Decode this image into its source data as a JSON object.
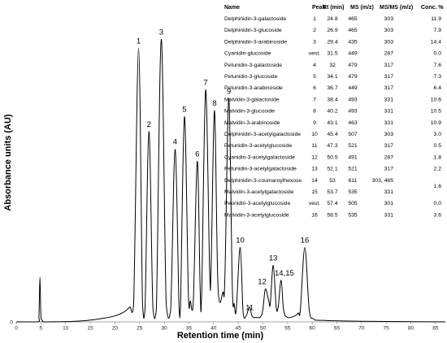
{
  "chart_data": {
    "type": "line",
    "xlabel": "Retention time (min)",
    "ylabel": "Absorbance units (AU)",
    "xlim": [
      0,
      87
    ],
    "ylim": [
      0,
      1
    ],
    "x_ticks": [
      0,
      5,
      10,
      15,
      20,
      25,
      30,
      35,
      40,
      45,
      50,
      55,
      60,
      65,
      70,
      75,
      80,
      85
    ],
    "y_ticks": [
      "0"
    ],
    "peaks": [
      {
        "label": "1",
        "x": 24.8,
        "y": 0.92
      },
      {
        "label": "2",
        "x": 26.9,
        "y": 0.64
      },
      {
        "label": "3",
        "x": 29.4,
        "y": 0.95
      },
      {
        "label": "4",
        "x": 32.2,
        "y": 0.58
      },
      {
        "label": "5",
        "x": 34.1,
        "y": 0.69
      },
      {
        "label": "6",
        "x": 36.7,
        "y": 0.54
      },
      {
        "label": "7",
        "x": 38.4,
        "y": 0.78
      },
      {
        "label": "8",
        "x": 40.2,
        "y": 0.71
      },
      {
        "label": "9",
        "x": 43.1,
        "y": 0.75
      },
      {
        "label": "10",
        "x": 45.4,
        "y": 0.25
      },
      {
        "label": "11",
        "x": 47.3,
        "y": 0.05
      },
      {
        "label": "12",
        "x": 50.5,
        "y": 0.11
      },
      {
        "label": "13",
        "x": 52.1,
        "y": 0.19
      },
      {
        "label": "14,15",
        "x": 53.7,
        "y": 0.14
      },
      {
        "label": "16",
        "x": 58.5,
        "y": 0.25
      }
    ],
    "trace": {
      "x": [
        0,
        4.3,
        4.6,
        4.8,
        5.0,
        5.3,
        6,
        12,
        16,
        20,
        22,
        23,
        23.8,
        24.8,
        25.6,
        26.1,
        26.9,
        27.7,
        28.4,
        29.4,
        30.4,
        31.3,
        32.2,
        33.0,
        33.3,
        34.1,
        34.9,
        35.3,
        35.9,
        36.7,
        37.3,
        37.6,
        38.4,
        39.2,
        39.5,
        40.2,
        40.9,
        41.9,
        42.3,
        43.1,
        43.8,
        44.2,
        44.6,
        45.4,
        46.0,
        46.6,
        47.3,
        47.8,
        48.5,
        49.8,
        50.5,
        51.2,
        51.5,
        52.1,
        52.7,
        53.1,
        53.7,
        54.2,
        55,
        56.5,
        57.2,
        57.6,
        58.5,
        59.4,
        60.3,
        62,
        70,
        87
      ],
      "y": [
        0,
        0,
        0.02,
        0.15,
        0.02,
        0.005,
        0,
        0.002,
        0.008,
        0.02,
        0.035,
        0.05,
        0.06,
        0.92,
        0.06,
        0.04,
        0.64,
        0.05,
        0.04,
        0.95,
        0.06,
        0.04,
        0.58,
        0.05,
        0.05,
        0.69,
        0.09,
        0.07,
        0.07,
        0.54,
        0.1,
        0.1,
        0.78,
        0.18,
        0.18,
        0.71,
        0.12,
        0.1,
        0.15,
        0.75,
        0.12,
        0.06,
        0.04,
        0.25,
        0.03,
        0.02,
        0.05,
        0.02,
        0.015,
        0.025,
        0.11,
        0.07,
        0.06,
        0.19,
        0.05,
        0.05,
        0.14,
        0.04,
        0.015,
        0.02,
        0.03,
        0.04,
        0.25,
        0.04,
        0.01,
        0.005,
        0.002,
        0
      ]
    }
  },
  "table": {
    "headers": [
      "Name",
      "Peak",
      "Rt (min)",
      "MS (m/z)",
      "MS/MS (m/z)",
      "Conc. %"
    ],
    "rows": [
      {
        "name": "Delphinidin-3-galactoside",
        "peak": "1",
        "rt": "24.8",
        "ms": "465",
        "msms": "303",
        "conc": "11.9"
      },
      {
        "name": "Delphinidin-3-glucoside",
        "peak": "2",
        "rt": "26.9",
        "ms": "465",
        "msms": "303",
        "conc": "7.9"
      },
      {
        "name": "Delphinidin-3-arabinoside",
        "peak": "3",
        "rt": "29.4",
        "ms": "435",
        "msms": "303",
        "conc": "14.4"
      },
      {
        "name": "Cyanidin-glucoside",
        "peak": "vest.",
        "rt": "31.5",
        "ms": "449",
        "msms": "287",
        "conc": "0.0"
      },
      {
        "name": "Petunidin-3-galactoside",
        "peak": "4",
        "rt": "32",
        "ms": "479",
        "msms": "317",
        "conc": "7.6"
      },
      {
        "name": "Petunidin-3-glucoside",
        "peak": "5",
        "rt": "34.1",
        "ms": "479",
        "msms": "317",
        "conc": "7.3"
      },
      {
        "name": "Petunidin-3-arabinoside",
        "peak": "6",
        "rt": "36.7",
        "ms": "449",
        "msms": "317",
        "conc": "6.4"
      },
      {
        "name": "Malvidin-3-galactoside",
        "peak": "7",
        "rt": "38.4",
        "ms": "493",
        "msms": "331",
        "conc": "10.6"
      },
      {
        "name": "Malvidin-3-glucoside",
        "peak": "8",
        "rt": "40.2",
        "ms": "493",
        "msms": "331",
        "conc": "10.5"
      },
      {
        "name": "Malvidin-3-arabinoside",
        "peak": "9",
        "rt": "43.1",
        "ms": "463",
        "msms": "331",
        "conc": "10.9"
      },
      {
        "name": "Delphinidin-3-acetylgalactoside",
        "peak": "10",
        "rt": "45.4",
        "ms": "507",
        "msms": "303",
        "conc": "3.0"
      },
      {
        "name": "Petunidin-3-acetylglucoside",
        "peak": "11",
        "rt": "47.3",
        "ms": "521",
        "msms": "317",
        "conc": "0.5"
      },
      {
        "name": "Cyanidin-3-acetylgalactoside",
        "peak": "12",
        "rt": "50.5",
        "ms": "491",
        "msms": "287",
        "conc": "1.8"
      },
      {
        "name": "Petunidin-3-acetylgalactoside",
        "peak": "13",
        "rt": "52.1",
        "ms": "521",
        "msms": "317",
        "conc": "2.2"
      },
      {
        "name": "Delphinidin-3-coumaroylhexose",
        "peak": "14",
        "rt": "53",
        "ms": "611",
        "msms": "303, 465",
        "conc": ""
      },
      {
        "name": "Malvidin-3-acetylgalactoside",
        "peak": "15",
        "rt": "53.7",
        "ms": "535",
        "msms": "331",
        "conc": "1.6"
      },
      {
        "name": "Peonidin-3-acetylglucoside",
        "peak": "vest.",
        "rt": "57.4",
        "ms": "505",
        "msms": "301",
        "conc": "0.0"
      },
      {
        "name": "Malvidin-3-acetylglucoside",
        "peak": "16",
        "rt": "58.5",
        "ms": "535",
        "msms": "331",
        "conc": "3.6"
      }
    ]
  }
}
